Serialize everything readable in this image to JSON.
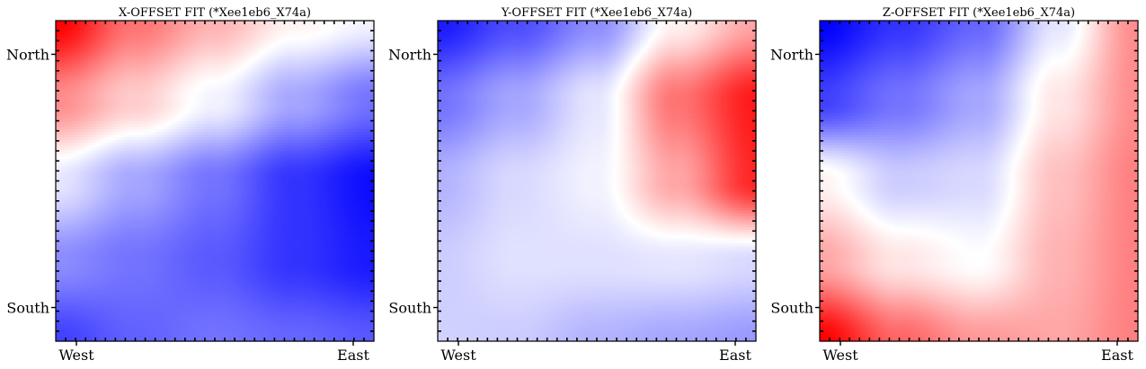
{
  "figure": {
    "panels": [
      {
        "title": "X-OFFSET FIT (*Xee1eb6_X74a)",
        "x_ticklabels": [
          "West",
          "East"
        ],
        "y_ticklabels": [
          "North",
          "South"
        ]
      },
      {
        "title": "Y-OFFSET FIT (*Xee1eb6_X74a)",
        "x_ticklabels": [
          "West",
          "East"
        ],
        "y_ticklabels": [
          "North",
          "South"
        ]
      },
      {
        "title": "Z-OFFSET FIT (*Xee1eb6_X74a)",
        "x_ticklabels": [
          "West",
          "East"
        ],
        "y_ticklabels": [
          "North",
          "South"
        ]
      }
    ]
  },
  "chart_data": [
    {
      "type": "heatmap",
      "title": "X-OFFSET FIT (*Xee1eb6_X74a)",
      "x_tick_labels": [
        "West",
        "East"
      ],
      "y_tick_labels": [
        "North",
        "South"
      ],
      "colormap": "bwr",
      "colors": {
        "low": "#0000ff",
        "mid": "#ffffff",
        "high": "#ff0000"
      },
      "value_range": [
        -1,
        1
      ],
      "grid_size": [
        5,
        5
      ],
      "values": [
        [
          1.0,
          0.55,
          0.3,
          0.05,
          -0.05
        ],
        [
          0.45,
          0.2,
          -0.05,
          -0.35,
          -0.55
        ],
        [
          -0.1,
          -0.35,
          -0.55,
          -0.8,
          -0.95
        ],
        [
          -0.45,
          -0.55,
          -0.65,
          -0.8,
          -0.9
        ],
        [
          -0.75,
          -0.62,
          -0.55,
          -0.6,
          -0.65
        ]
      ]
    },
    {
      "type": "heatmap",
      "title": "Y-OFFSET FIT (*Xee1eb6_X74a)",
      "x_tick_labels": [
        "West",
        "East"
      ],
      "y_tick_labels": [
        "North",
        "South"
      ],
      "colormap": "bwr",
      "colors": {
        "low": "#0000ff",
        "mid": "#ffffff",
        "high": "#ff0000"
      },
      "value_range": [
        -1,
        1
      ],
      "grid_size": [
        5,
        5
      ],
      "values": [
        [
          -0.9,
          -0.7,
          -0.45,
          0.05,
          0.35
        ],
        [
          -0.55,
          -0.35,
          -0.1,
          0.55,
          0.9
        ],
        [
          -0.3,
          -0.15,
          -0.05,
          0.35,
          0.85
        ],
        [
          -0.2,
          -0.12,
          -0.12,
          -0.1,
          -0.15
        ],
        [
          -0.18,
          -0.2,
          -0.3,
          -0.35,
          -0.4
        ]
      ]
    },
    {
      "type": "heatmap",
      "title": "Z-OFFSET FIT (*Xee1eb6_X74a)",
      "x_tick_labels": [
        "West",
        "East"
      ],
      "y_tick_labels": [
        "North",
        "South"
      ],
      "colormap": "bwr",
      "colors": {
        "low": "#0000ff",
        "mid": "#ffffff",
        "high": "#ff0000"
      },
      "value_range": [
        -1,
        1
      ],
      "grid_size": [
        5,
        5
      ],
      "values": [
        [
          -1.0,
          -0.8,
          -0.6,
          -0.1,
          0.45
        ],
        [
          -0.75,
          -0.55,
          -0.35,
          0.1,
          0.45
        ],
        [
          0.05,
          -0.2,
          -0.15,
          0.25,
          0.5
        ],
        [
          0.35,
          0.1,
          0.0,
          0.3,
          0.5
        ],
        [
          1.0,
          0.6,
          0.4,
          0.35,
          0.5
        ]
      ]
    }
  ]
}
